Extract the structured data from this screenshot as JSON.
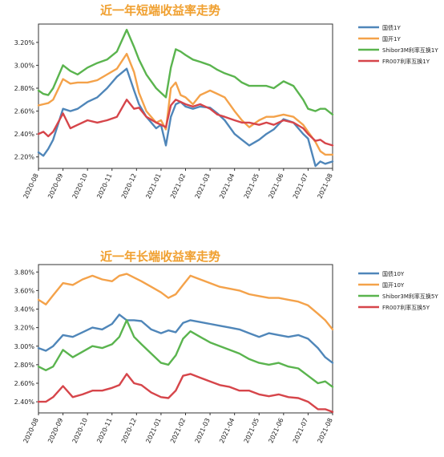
{
  "chart_data": [
    {
      "type": "line",
      "title": "近一年短端收益率走势",
      "xlabel": "",
      "ylabel": "",
      "x_ticks": [
        "2020-08",
        "2020-09",
        "2020-10",
        "2020-11",
        "2020-12",
        "2021-01",
        "2021-02",
        "2021-03",
        "2021-04",
        "2021-05",
        "2021-06",
        "2021-07",
        "2021-08"
      ],
      "y_ticks": [
        "2.20%",
        "2.40%",
        "2.60%",
        "2.80%",
        "3.00%",
        "3.20%"
      ],
      "ylim": [
        2.1,
        3.36
      ],
      "x_range": [
        0,
        12
      ],
      "grid": false,
      "legend_position": "right",
      "series": [
        {
          "name": "国债1Y",
          "color": "#4f86b9",
          "x": [
            0,
            0.2,
            0.4,
            0.6,
            1.0,
            1.3,
            1.6,
            2.0,
            2.4,
            2.8,
            3.2,
            3.6,
            3.9,
            4.1,
            4.4,
            4.8,
            5.0,
            5.2,
            5.4,
            5.6,
            5.8,
            6.0,
            6.3,
            6.6,
            7.0,
            7.3,
            7.6,
            8.0,
            8.3,
            8.6,
            9.0,
            9.3,
            9.6,
            10.0,
            10.4,
            10.8,
            11.0,
            11.3,
            11.5,
            11.7,
            12.0
          ],
          "values": [
            2.24,
            2.21,
            2.27,
            2.35,
            2.62,
            2.6,
            2.62,
            2.68,
            2.72,
            2.8,
            2.9,
            2.97,
            2.78,
            2.66,
            2.55,
            2.45,
            2.48,
            2.3,
            2.55,
            2.66,
            2.68,
            2.64,
            2.62,
            2.64,
            2.63,
            2.58,
            2.52,
            2.4,
            2.35,
            2.3,
            2.35,
            2.4,
            2.44,
            2.53,
            2.5,
            2.4,
            2.36,
            2.12,
            2.16,
            2.14,
            2.16
          ]
        },
        {
          "name": "国开1Y",
          "color": "#f4a24a",
          "x": [
            0,
            0.2,
            0.4,
            0.6,
            1.0,
            1.3,
            1.6,
            2.0,
            2.4,
            2.8,
            3.2,
            3.6,
            3.9,
            4.1,
            4.4,
            4.8,
            5.0,
            5.2,
            5.4,
            5.6,
            5.8,
            6.0,
            6.3,
            6.6,
            7.0,
            7.3,
            7.6,
            8.0,
            8.3,
            8.6,
            9.0,
            9.3,
            9.6,
            10.0,
            10.4,
            10.8,
            11.0,
            11.3,
            11.5,
            11.7,
            12.0
          ],
          "values": [
            2.65,
            2.66,
            2.67,
            2.7,
            2.88,
            2.84,
            2.85,
            2.85,
            2.87,
            2.92,
            2.97,
            3.1,
            2.94,
            2.76,
            2.6,
            2.5,
            2.52,
            2.44,
            2.8,
            2.85,
            2.74,
            2.72,
            2.66,
            2.74,
            2.78,
            2.75,
            2.72,
            2.6,
            2.52,
            2.46,
            2.52,
            2.55,
            2.55,
            2.57,
            2.55,
            2.48,
            2.42,
            2.33,
            2.25,
            2.22,
            2.22
          ]
        },
        {
          "name": "Shibor3M利率互换1Y",
          "color": "#5ab44e",
          "x": [
            0,
            0.2,
            0.4,
            0.6,
            1.0,
            1.3,
            1.6,
            2.0,
            2.4,
            2.8,
            3.2,
            3.6,
            3.9,
            4.1,
            4.4,
            4.8,
            5.0,
            5.2,
            5.4,
            5.6,
            5.8,
            6.0,
            6.3,
            6.6,
            7.0,
            7.3,
            7.6,
            8.0,
            8.3,
            8.6,
            9.0,
            9.3,
            9.6,
            10.0,
            10.4,
            10.8,
            11.0,
            11.3,
            11.5,
            11.7,
            12.0
          ],
          "values": [
            2.78,
            2.75,
            2.74,
            2.8,
            3.0,
            2.95,
            2.92,
            2.98,
            3.02,
            3.05,
            3.12,
            3.31,
            3.16,
            3.05,
            2.92,
            2.8,
            2.76,
            2.72,
            2.98,
            3.14,
            3.12,
            3.09,
            3.05,
            3.03,
            3.0,
            2.96,
            2.93,
            2.9,
            2.85,
            2.82,
            2.82,
            2.82,
            2.8,
            2.86,
            2.82,
            2.7,
            2.62,
            2.6,
            2.62,
            2.62,
            2.57
          ]
        },
        {
          "name": "FR007利率互换1Y",
          "color": "#d6454a",
          "x": [
            0,
            0.2,
            0.4,
            0.6,
            1.0,
            1.3,
            1.6,
            2.0,
            2.4,
            2.8,
            3.2,
            3.6,
            3.9,
            4.1,
            4.4,
            4.8,
            5.0,
            5.2,
            5.4,
            5.6,
            5.8,
            6.0,
            6.3,
            6.6,
            7.0,
            7.3,
            7.6,
            8.0,
            8.3,
            8.6,
            9.0,
            9.3,
            9.6,
            10.0,
            10.4,
            10.8,
            11.0,
            11.3,
            11.5,
            11.7,
            12.0
          ],
          "values": [
            2.4,
            2.42,
            2.38,
            2.42,
            2.58,
            2.45,
            2.48,
            2.52,
            2.5,
            2.52,
            2.55,
            2.7,
            2.62,
            2.63,
            2.55,
            2.5,
            2.48,
            2.46,
            2.65,
            2.7,
            2.68,
            2.66,
            2.64,
            2.66,
            2.62,
            2.57,
            2.55,
            2.52,
            2.5,
            2.5,
            2.48,
            2.5,
            2.48,
            2.52,
            2.5,
            2.45,
            2.4,
            2.34,
            2.35,
            2.32,
            2.3
          ]
        }
      ]
    },
    {
      "type": "line",
      "title": "近一年长端收益率走势",
      "xlabel": "",
      "ylabel": "",
      "x_ticks": [
        "2020-08",
        "2020-09",
        "2020-10",
        "2020-11",
        "2020-12",
        "2021-01",
        "2021-02",
        "2021-03",
        "2021-04",
        "2021-05",
        "2021-06",
        "2021-07",
        "2021-08"
      ],
      "y_ticks": [
        "2.40%",
        "2.60%",
        "2.80%",
        "3.00%",
        "3.20%",
        "3.40%",
        "3.60%",
        "3.80%"
      ],
      "ylim": [
        2.28,
        3.88
      ],
      "x_range": [
        0,
        12
      ],
      "grid": false,
      "legend_position": "right",
      "series": [
        {
          "name": "国债10Y",
          "color": "#4f86b9",
          "x": [
            0,
            0.3,
            0.6,
            1.0,
            1.4,
            1.8,
            2.2,
            2.6,
            3.0,
            3.3,
            3.6,
            3.9,
            4.2,
            4.6,
            5.0,
            5.3,
            5.6,
            5.9,
            6.2,
            6.6,
            7.0,
            7.4,
            7.8,
            8.2,
            8.6,
            9.0,
            9.4,
            9.8,
            10.2,
            10.6,
            11.0,
            11.4,
            11.7,
            12.0
          ],
          "values": [
            2.98,
            2.95,
            3.0,
            3.12,
            3.1,
            3.15,
            3.2,
            3.18,
            3.24,
            3.34,
            3.28,
            3.28,
            3.27,
            3.18,
            3.14,
            3.17,
            3.15,
            3.25,
            3.28,
            3.26,
            3.24,
            3.22,
            3.2,
            3.18,
            3.14,
            3.1,
            3.14,
            3.12,
            3.1,
            3.12,
            3.08,
            2.98,
            2.88,
            2.82
          ]
        },
        {
          "name": "国开10Y",
          "color": "#f4a24a",
          "x": [
            0,
            0.3,
            0.6,
            1.0,
            1.4,
            1.8,
            2.2,
            2.6,
            3.0,
            3.3,
            3.6,
            3.9,
            4.2,
            4.6,
            5.0,
            5.3,
            5.6,
            5.9,
            6.2,
            6.6,
            7.0,
            7.4,
            7.8,
            8.2,
            8.6,
            9.0,
            9.4,
            9.8,
            10.2,
            10.6,
            11.0,
            11.4,
            11.7,
            12.0
          ],
          "values": [
            3.5,
            3.45,
            3.55,
            3.68,
            3.66,
            3.72,
            3.76,
            3.72,
            3.7,
            3.76,
            3.78,
            3.74,
            3.7,
            3.64,
            3.58,
            3.52,
            3.56,
            3.66,
            3.76,
            3.72,
            3.68,
            3.64,
            3.62,
            3.6,
            3.56,
            3.54,
            3.52,
            3.52,
            3.5,
            3.48,
            3.44,
            3.35,
            3.28,
            3.18
          ]
        },
        {
          "name": "Shibor3M利率互换5Y",
          "color": "#5ab44e",
          "x": [
            0,
            0.3,
            0.6,
            1.0,
            1.4,
            1.8,
            2.2,
            2.6,
            3.0,
            3.3,
            3.6,
            3.9,
            4.2,
            4.6,
            5.0,
            5.3,
            5.6,
            5.9,
            6.2,
            6.6,
            7.0,
            7.4,
            7.8,
            8.2,
            8.6,
            9.0,
            9.4,
            9.8,
            10.2,
            10.6,
            11.0,
            11.4,
            11.7,
            12.0
          ],
          "values": [
            2.78,
            2.74,
            2.78,
            2.96,
            2.88,
            2.94,
            3.0,
            2.98,
            3.02,
            3.1,
            3.28,
            3.1,
            3.02,
            2.92,
            2.82,
            2.8,
            2.9,
            3.08,
            3.16,
            3.1,
            3.04,
            3.0,
            2.96,
            2.92,
            2.86,
            2.82,
            2.8,
            2.82,
            2.78,
            2.76,
            2.68,
            2.6,
            2.62,
            2.56
          ]
        },
        {
          "name": "FR007利率互换5Y",
          "color": "#d6454a",
          "x": [
            0,
            0.3,
            0.6,
            1.0,
            1.4,
            1.8,
            2.2,
            2.6,
            3.0,
            3.3,
            3.6,
            3.9,
            4.2,
            4.6,
            5.0,
            5.3,
            5.6,
            5.9,
            6.2,
            6.6,
            7.0,
            7.4,
            7.8,
            8.2,
            8.6,
            9.0,
            9.4,
            9.8,
            10.2,
            10.6,
            11.0,
            11.4,
            11.7,
            12.0
          ],
          "values": [
            2.4,
            2.4,
            2.45,
            2.57,
            2.45,
            2.48,
            2.52,
            2.52,
            2.55,
            2.58,
            2.7,
            2.6,
            2.58,
            2.5,
            2.45,
            2.44,
            2.52,
            2.68,
            2.7,
            2.66,
            2.62,
            2.58,
            2.56,
            2.52,
            2.52,
            2.48,
            2.46,
            2.48,
            2.45,
            2.44,
            2.4,
            2.32,
            2.32,
            2.29
          ]
        }
      ]
    }
  ]
}
